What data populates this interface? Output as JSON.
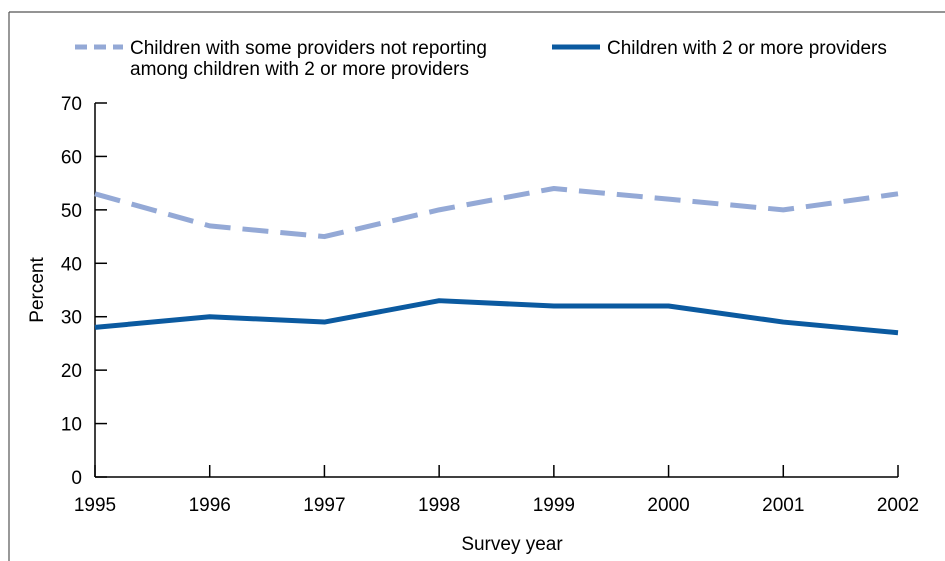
{
  "chart_data": {
    "type": "line",
    "xlabel": "Survey year",
    "ylabel": "Percent",
    "ylim": [
      0,
      70
    ],
    "yticks": [
      0,
      10,
      20,
      30,
      40,
      50,
      60,
      70
    ],
    "categories": [
      "1995",
      "1996",
      "1997",
      "1998",
      "1999",
      "2000",
      "2001",
      "2002"
    ],
    "legend_placement": "top",
    "grid": false,
    "series": [
      {
        "name": "Children with some providers not reporting among children with 2 or more providers",
        "legend_lines": [
          "Children with some providers not reporting",
          "among children with 2 or more providers"
        ],
        "values": [
          53,
          47,
          45,
          50,
          54,
          52,
          50,
          53
        ],
        "color": "#94a9d6",
        "style": "dashed"
      },
      {
        "name": "Children with 2 or more providers",
        "legend_lines": [
          "Children with 2 or more providers"
        ],
        "values": [
          28,
          30,
          29,
          33,
          32,
          32,
          29,
          27
        ],
        "color": "#0b5aa0",
        "style": "solid"
      }
    ]
  }
}
